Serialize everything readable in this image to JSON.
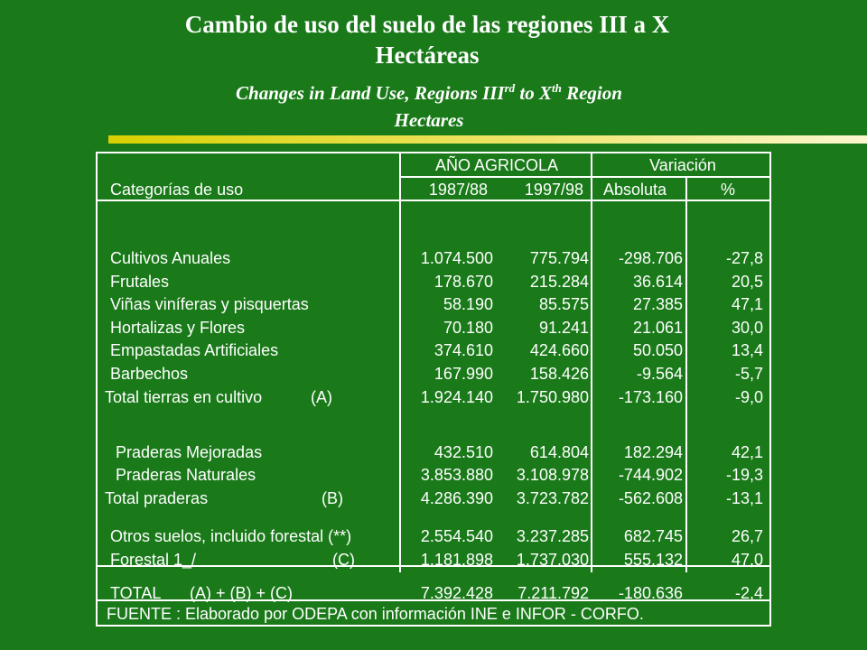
{
  "title": {
    "line1": "Cambio de uso del suelo de las regiones III  a X",
    "line2": "Hectáreas"
  },
  "subtitle": {
    "line1_pre": "Changes in Land Use, Regions III",
    "sup1": "rd",
    "line1_mid": " to X",
    "sup2": "th",
    "line1_post": " Region",
    "line2": "Hectares"
  },
  "table": {
    "header": {
      "category_label": "Categorías de uso",
      "group_year": "AÑO AGRICOLA",
      "group_variation": "Variación",
      "col_1987": "1987/88",
      "col_1997": "1997/98",
      "col_abs": "Absoluta",
      "col_pct": "%"
    },
    "rows": [
      {
        "label": "Cultivos Anuales",
        "v1987": "1.074.500",
        "v1997": "775.794",
        "abs": "-298.706",
        "pct": "-27,8"
      },
      {
        "label": "Frutales",
        "v1987": "178.670",
        "v1997": "215.284",
        "abs": "36.614",
        "pct": "20,5"
      },
      {
        "label": "Viñas viníferas y pisquertas",
        "v1987": "58.190",
        "v1997": "85.575",
        "abs": "27.385",
        "pct": "47,1"
      },
      {
        "label": "Hortalizas y Flores",
        "v1987": "70.180",
        "v1997": "91.241",
        "abs": "21.061",
        "pct": "30,0"
      },
      {
        "label": "Empastadas Artificiales",
        "v1987": "374.610",
        "v1997": "424.660",
        "abs": "50.050",
        "pct": "13,4"
      },
      {
        "label": "Barbechos",
        "v1987": "167.990",
        "v1997": "158.426",
        "abs": "-9.564",
        "pct": "-5,7"
      },
      {
        "label": "Total tierras en cultivo",
        "tag": "(A)",
        "v1987": "1.924.140",
        "v1997": "1.750.980",
        "abs": "-173.160",
        "pct": "-9,0"
      },
      {
        "label": "Praderas Mejoradas",
        "v1987": "432.510",
        "v1997": "614.804",
        "abs": "182.294",
        "pct": "42,1"
      },
      {
        "label": "Praderas Naturales",
        "v1987": "3.853.880",
        "v1997": "3.108.978",
        "abs": "-744.902",
        "pct": "-19,3"
      },
      {
        "label": "Total praderas",
        "tag": "(B)",
        "v1987": "4.286.390",
        "v1997": "3.723.782",
        "abs": "-562.608",
        "pct": "-13,1"
      },
      {
        "label": "Otros suelos, incluido forestal  (**)",
        "v1987": "2.554.540",
        "v1997": "3.237.285",
        "abs": "682.745",
        "pct": "26,7"
      },
      {
        "label": "Forestal  1_/",
        "tag": "(C)",
        "v1987": "1.181.898",
        "v1997": "1.737.030",
        "abs": "555.132",
        "pct": "47,0"
      }
    ],
    "total": {
      "label": "TOTAL",
      "tag": "(A) + (B) + (C)",
      "v1987": "7.392.428",
      "v1997": "7.211.792",
      "abs": "-180.636",
      "pct": "-2,4"
    },
    "source": "FUENTE : Elaborado por ODEPA con información INE e INFOR - CORFO."
  },
  "colors": {
    "background": "#1a7a1a",
    "rule": "#d8d000",
    "text": "#ffffff"
  }
}
